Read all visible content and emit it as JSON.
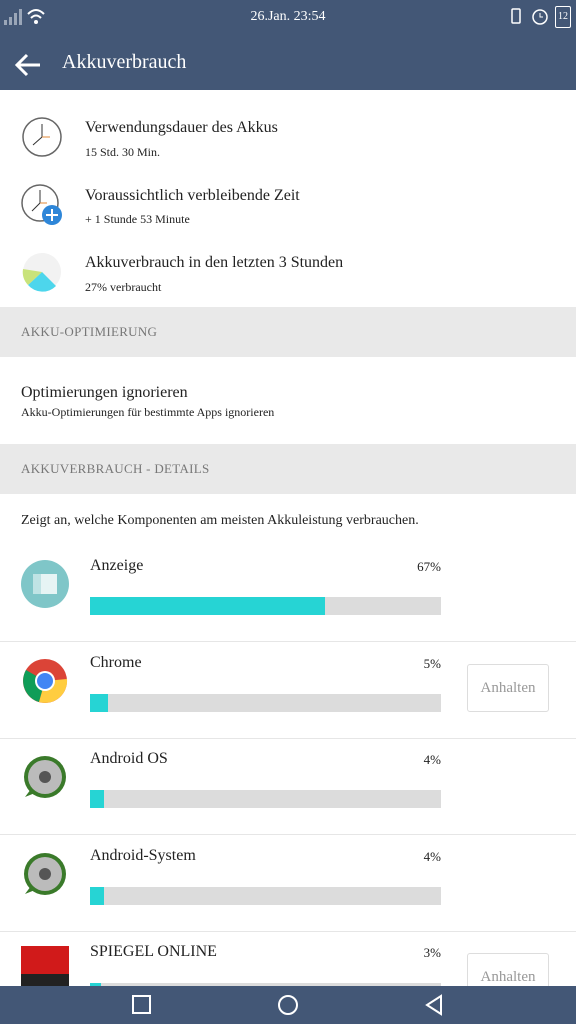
{
  "status_bar": {
    "time": "26.Jan. 23:54",
    "battery": "12"
  },
  "header": {
    "title": "Akkuverbrauch"
  },
  "summary": [
    {
      "title": "Verwendungsdauer des Akkus",
      "subtitle": "15 Std. 30 Min."
    },
    {
      "title": "Voraussichtlich verbleibende Zeit",
      "subtitle": "+ 1 Stunde 53 Minute"
    },
    {
      "title": "Akkuverbrauch in den letzten 3 Stunden",
      "subtitle": "27% verbraucht"
    }
  ],
  "optimization": {
    "heading": "AKKU-OPTIMIERUNG",
    "title": "Optimierungen ignorieren",
    "subtitle": "Akku-Optimierungen für bestimmte Apps ignorieren"
  },
  "details": {
    "heading": "AKKUVERBRAUCH - DETAILS",
    "description": "Zeigt an, welche Komponenten am meisten Akkuleistung verbrauchen.",
    "bar_color": "#26d4d4",
    "scale": [
      0,
      100
    ],
    "apps": [
      {
        "name": "Anzeige",
        "value": 67,
        "value_label": "67%"
      },
      {
        "name": "Chrome",
        "value": 5,
        "value_label": "5%",
        "button": "Anhalten"
      },
      {
        "name": "Android OS",
        "value": 4,
        "value_label": "4%"
      },
      {
        "name": "Android-System",
        "value": 4,
        "value_label": "4%"
      },
      {
        "name": "SPIEGEL ONLINE",
        "value": 3,
        "value_label": "3%",
        "button": "Anhalten"
      }
    ]
  }
}
